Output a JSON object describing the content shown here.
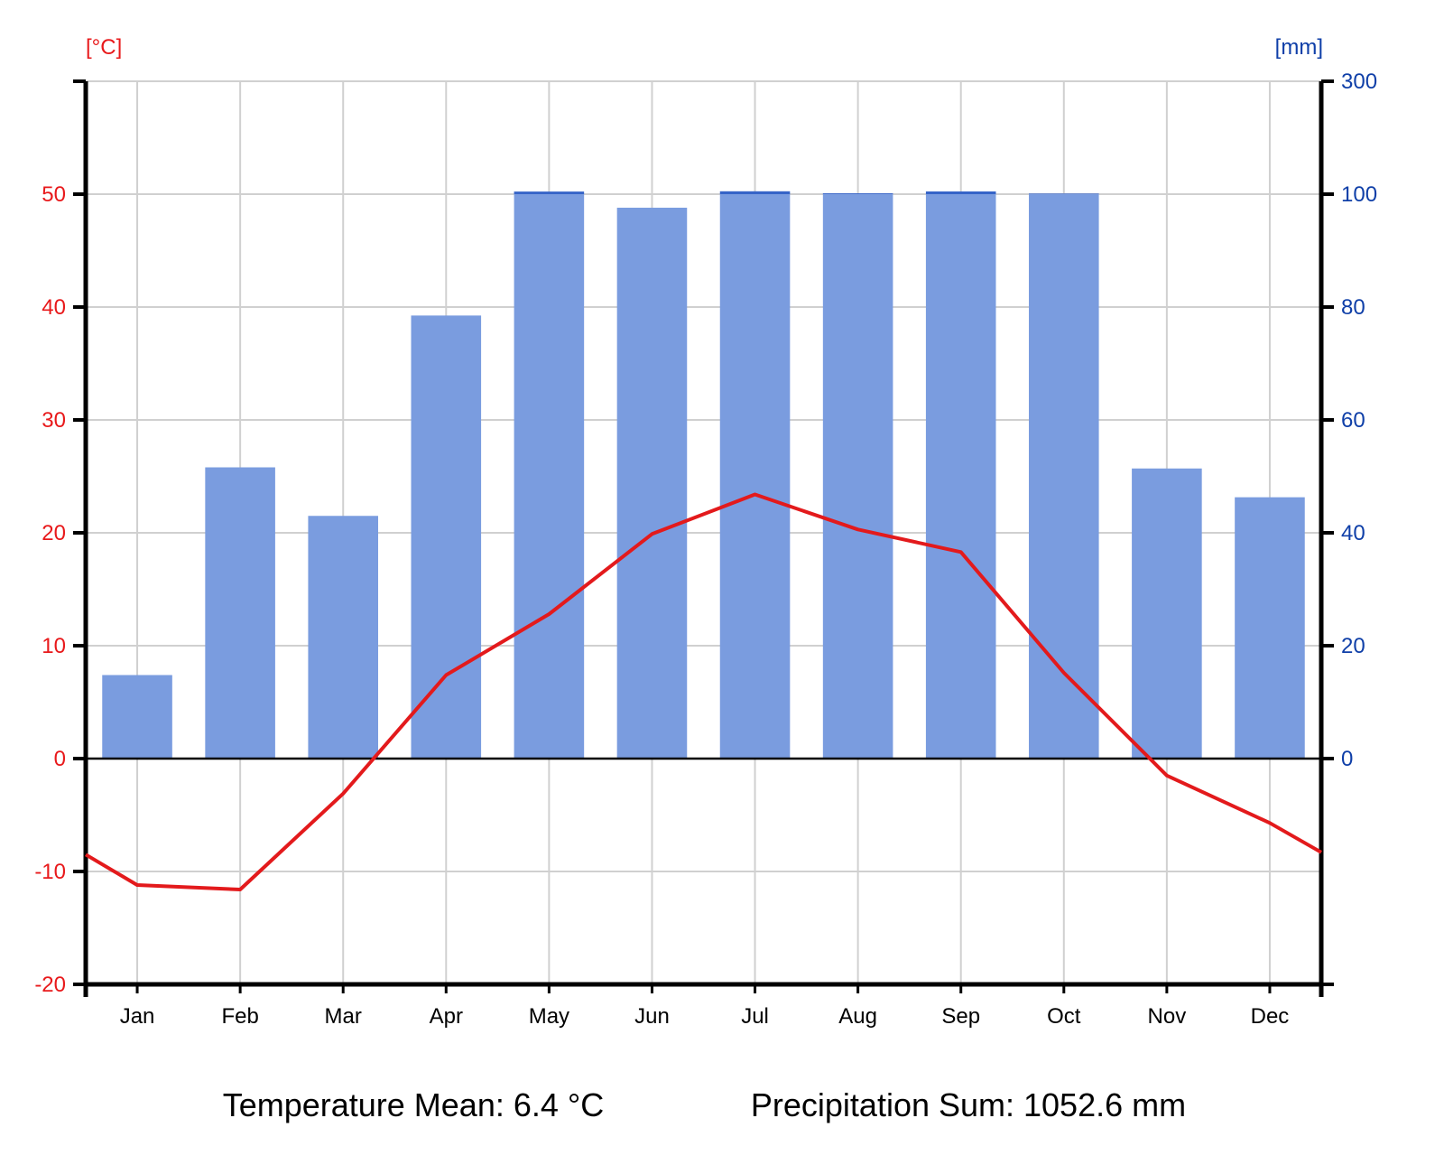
{
  "chart_data": {
    "type": "bar+line",
    "categories": [
      "Jan",
      "Feb",
      "Mar",
      "Apr",
      "May",
      "Jun",
      "Jul",
      "Aug",
      "Sep",
      "Oct",
      "Nov",
      "Dec"
    ],
    "series": [
      {
        "kind": "bar",
        "axis": "right",
        "values": [
          14.8,
          51.6,
          43.0,
          78.5,
          104.6,
          97.6,
          105.1,
          101.5,
          104.8,
          101.0,
          51.4,
          46.3
        ]
      },
      {
        "kind": "line",
        "axis": "left",
        "values": [
          -11.2,
          -11.6,
          -3.1,
          7.4,
          12.8,
          19.9,
          23.4,
          20.3,
          18.3,
          7.6,
          -1.5,
          -5.7
        ],
        "edge_values": [
          -8.5,
          -8.3
        ]
      }
    ],
    "left_axis": {
      "unit_label": "[°C]",
      "ylim": [
        -20,
        60
      ],
      "ticks": [
        -20,
        -10,
        0,
        10,
        20,
        30,
        40,
        50
      ],
      "tick_labels": [
        "-20",
        "-10",
        "0",
        "10",
        "20",
        "30",
        "40",
        "50"
      ],
      "color": "#e8191b"
    },
    "right_axis": {
      "unit_label": "[mm]",
      "ticks": [
        0,
        20,
        40,
        60,
        80,
        100,
        300
      ],
      "tick_labels": [
        "0",
        "20",
        "40",
        "60",
        "80",
        "100",
        "300"
      ],
      "scale": "linear up to 100 mm, compressed above 100 mm",
      "color": "#0f3fa8"
    },
    "bar_color": "#7a9cdf",
    "bar_excess_color": "#3664c8",
    "line_color": "#e31a1c",
    "grid": true
  },
  "summary": {
    "temperature": "Temperature Mean: 6.4 °C",
    "precipitation": "Precipitation Sum: 1052.6 mm"
  }
}
